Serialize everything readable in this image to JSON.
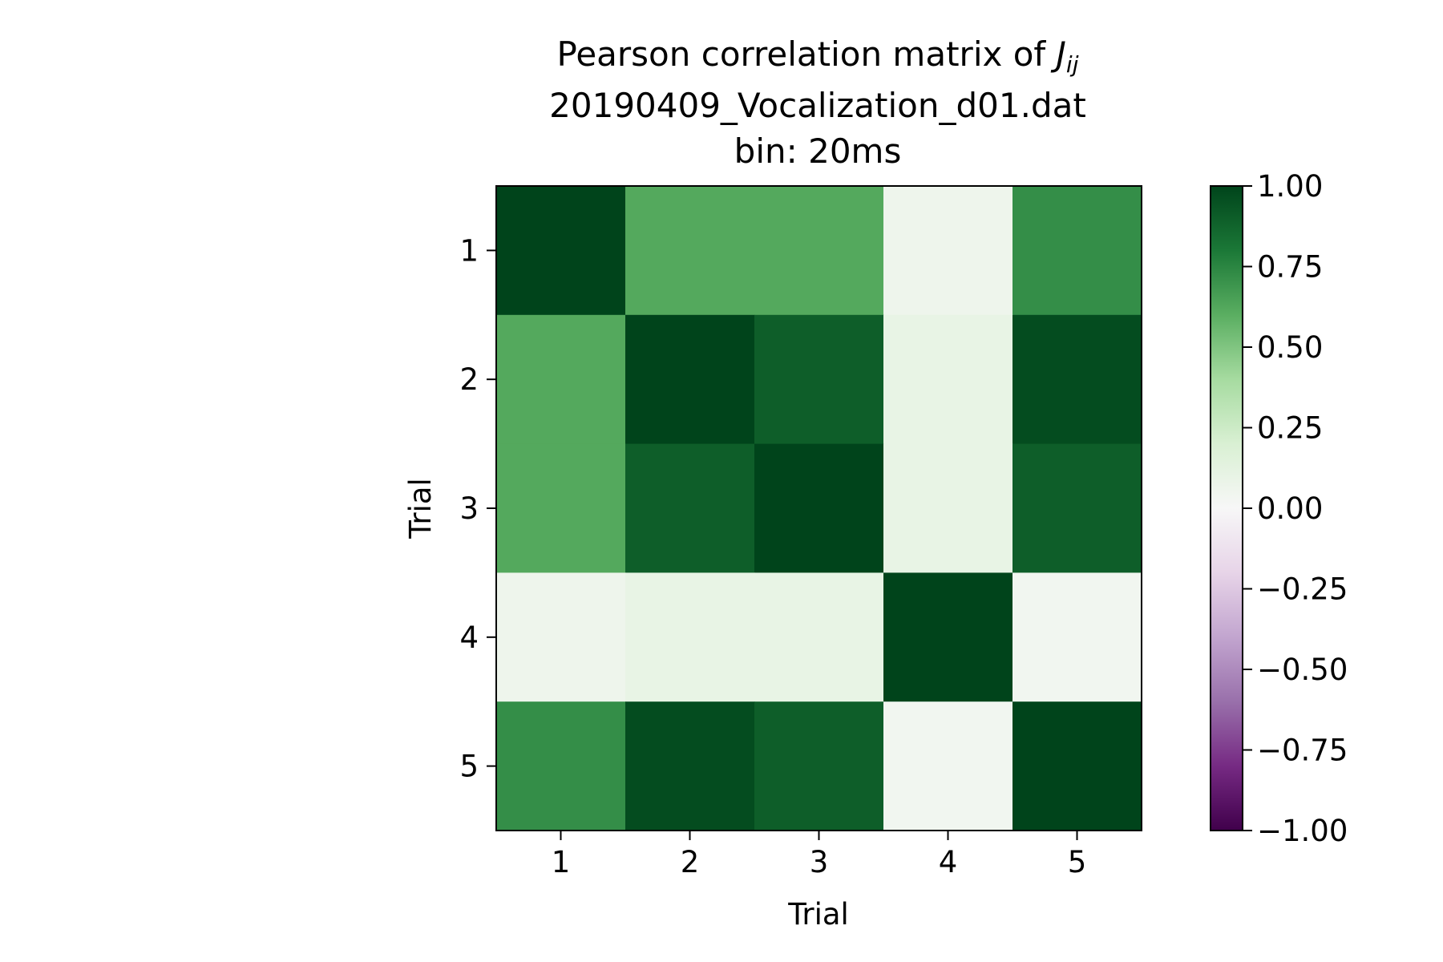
{
  "chart_data": {
    "type": "heatmap",
    "title_lines": [
      "Pearson correlation matrix of ",
      "20190409_Vocalization_d01.dat",
      "bin: 20ms"
    ],
    "title_math": "J",
    "title_math_sub": "ij",
    "xlabel": "Trial",
    "ylabel": "Trial",
    "x_categories": [
      "1",
      "2",
      "3",
      "4",
      "5"
    ],
    "y_categories": [
      "1",
      "2",
      "3",
      "4",
      "5"
    ],
    "values": [
      [
        1.0,
        0.62,
        0.62,
        0.06,
        0.72
      ],
      [
        0.62,
        1.0,
        0.9,
        0.1,
        0.97
      ],
      [
        0.62,
        0.9,
        1.0,
        0.1,
        0.9
      ],
      [
        0.06,
        0.1,
        0.1,
        1.0,
        0.04
      ],
      [
        0.72,
        0.97,
        0.9,
        0.04,
        1.0
      ]
    ],
    "colorbar": {
      "range": [
        -1,
        1
      ],
      "ticks": [
        1.0,
        0.75,
        0.5,
        0.25,
        0.0,
        -0.25,
        -0.5,
        -0.75,
        -1.0
      ],
      "tick_labels": [
        "1.00",
        "0.75",
        "0.50",
        "0.25",
        "0.00",
        "−0.25",
        "−0.50",
        "−0.75",
        "−1.00"
      ]
    },
    "colormap": [
      "#40004b",
      "#762a83",
      "#9970ab",
      "#c2a5cf",
      "#e7d4e8",
      "#f7f7f7",
      "#d9f0d3",
      "#a6dba0",
      "#5aae61",
      "#1b7837",
      "#00441b"
    ]
  }
}
